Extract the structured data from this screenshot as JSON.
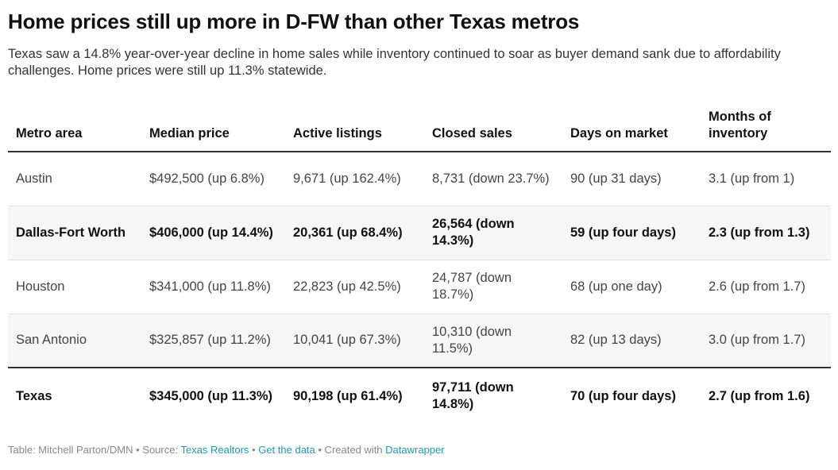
{
  "title": "Home prices still up more in D-FW than other Texas metros",
  "subtitle": "Texas saw a 14.8% year-over-year decline in home sales while inventory continued to soar as buyer demand sank due to affordability challenges. Home prices were still up 11.3% statewide.",
  "chart_data": {
    "type": "table",
    "columns": [
      "Metro area",
      "Median price",
      "Active listings",
      "Closed sales",
      "Days on market",
      "Months of inventory"
    ],
    "rows": [
      [
        "Austin",
        "$492,500 (up 6.8%)",
        "9,671 (up 162.4%)",
        "8,731 (down 23.7%)",
        "90 (up 31 days)",
        "3.1 (up from 1)"
      ],
      [
        "Dallas-Fort Worth",
        "$406,000 (up 14.4%)",
        "20,361 (up 68.4%)",
        "26,564 (down 14.3%)",
        "59 (up four days)",
        "2.3 (up from 1.3)"
      ],
      [
        "Houston",
        "$341,000 (up 11.8%)",
        "22,823 (up 42.5%)",
        "24,787 (down 18.7%)",
        "68 (up one day)",
        "2.6 (up from 1.7)"
      ],
      [
        "San Antonio",
        "$325,857 (up 11.2%)",
        "10,041 (up 67.3%)",
        "10,310 (down 11.5%)",
        "82 (up 13 days)",
        "3.0 (up from 1.7)"
      ],
      [
        "Texas",
        "$345,000 (up 11.3%)",
        "90,198 (up 61.4%)",
        "97,711 (down 14.8%)",
        "70 (up four days)",
        "2.7 (up from 1.6)"
      ]
    ],
    "highlighted_rows": [
      "Dallas-Fort Worth",
      "Texas"
    ]
  },
  "footer": {
    "prefix": "Table: Mitchell Parton/DMN • Source: ",
    "source_link": "Texas Realtors",
    "sep": " • ",
    "data_link": "Get the data",
    "middle": " • Created with ",
    "tool_link": "Datawrapper"
  }
}
